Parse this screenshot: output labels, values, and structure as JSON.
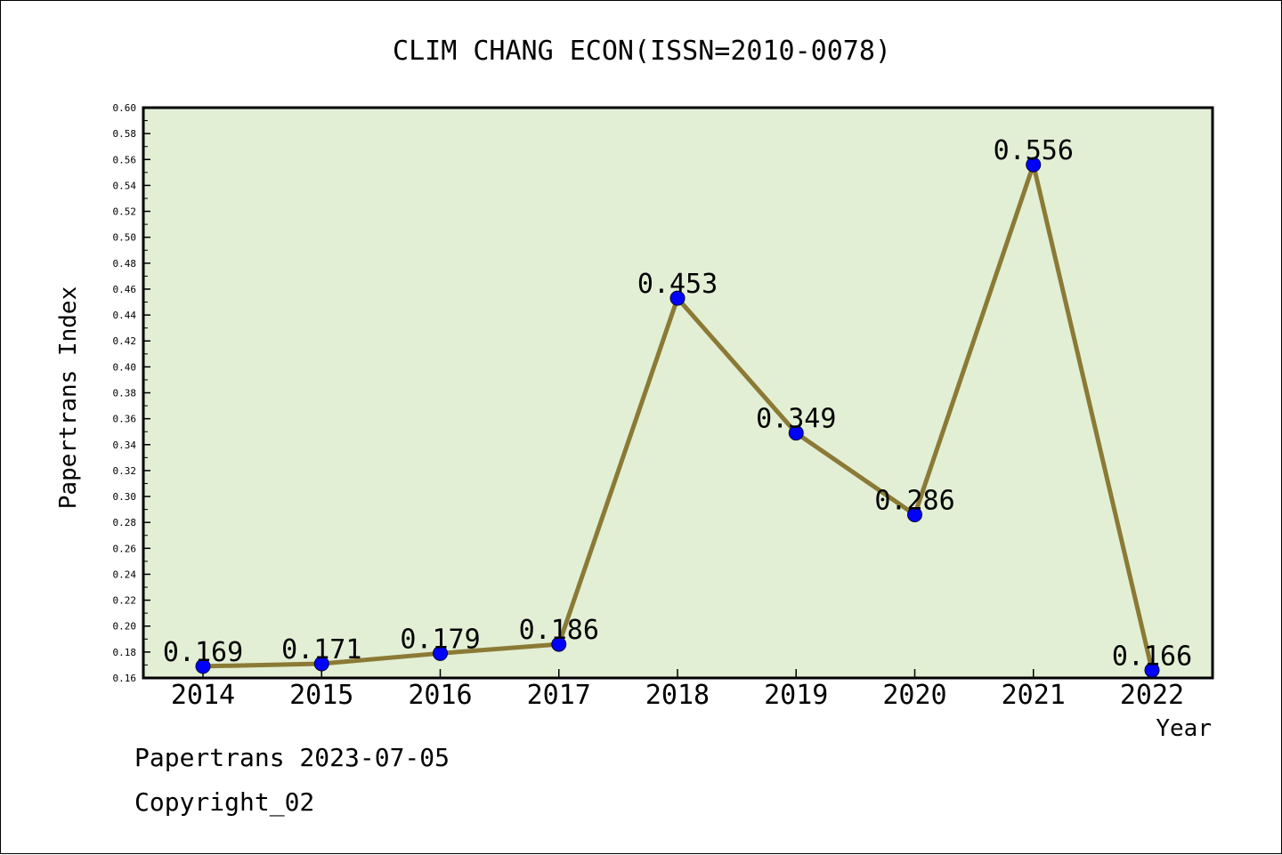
{
  "chart_data": {
    "type": "line",
    "title": "CLIM CHANG ECON(ISSN=2010-0078)",
    "xlabel": "Year",
    "ylabel": "Papertrans Index",
    "categories": [
      "2014",
      "2015",
      "2016",
      "2017",
      "2018",
      "2019",
      "2020",
      "2021",
      "2022"
    ],
    "values": [
      0.169,
      0.171,
      0.179,
      0.186,
      0.453,
      0.349,
      0.286,
      0.556,
      0.166
    ],
    "data_labels": [
      "0.169",
      "0.171",
      "0.179",
      "0.186",
      "0.453",
      "0.349",
      "0.286",
      "0.556",
      "0.166"
    ],
    "ylim": [
      0.16,
      0.6
    ],
    "yticks": [
      "0.16",
      "0.18",
      "0.20",
      "0.22",
      "0.24",
      "0.26",
      "0.28",
      "0.30",
      "0.32",
      "0.34",
      "0.36",
      "0.38",
      "0.40",
      "0.42",
      "0.44",
      "0.46",
      "0.48",
      "0.50",
      "0.52",
      "0.54",
      "0.56",
      "0.58",
      "0.60"
    ],
    "grid": false,
    "colors": {
      "plot_bg": "#e2efd5",
      "line": "#8b7a35",
      "marker": "#0000ff"
    }
  },
  "footer": {
    "line1": "Papertrans 2023-07-05",
    "line2": "Copyright_02"
  }
}
